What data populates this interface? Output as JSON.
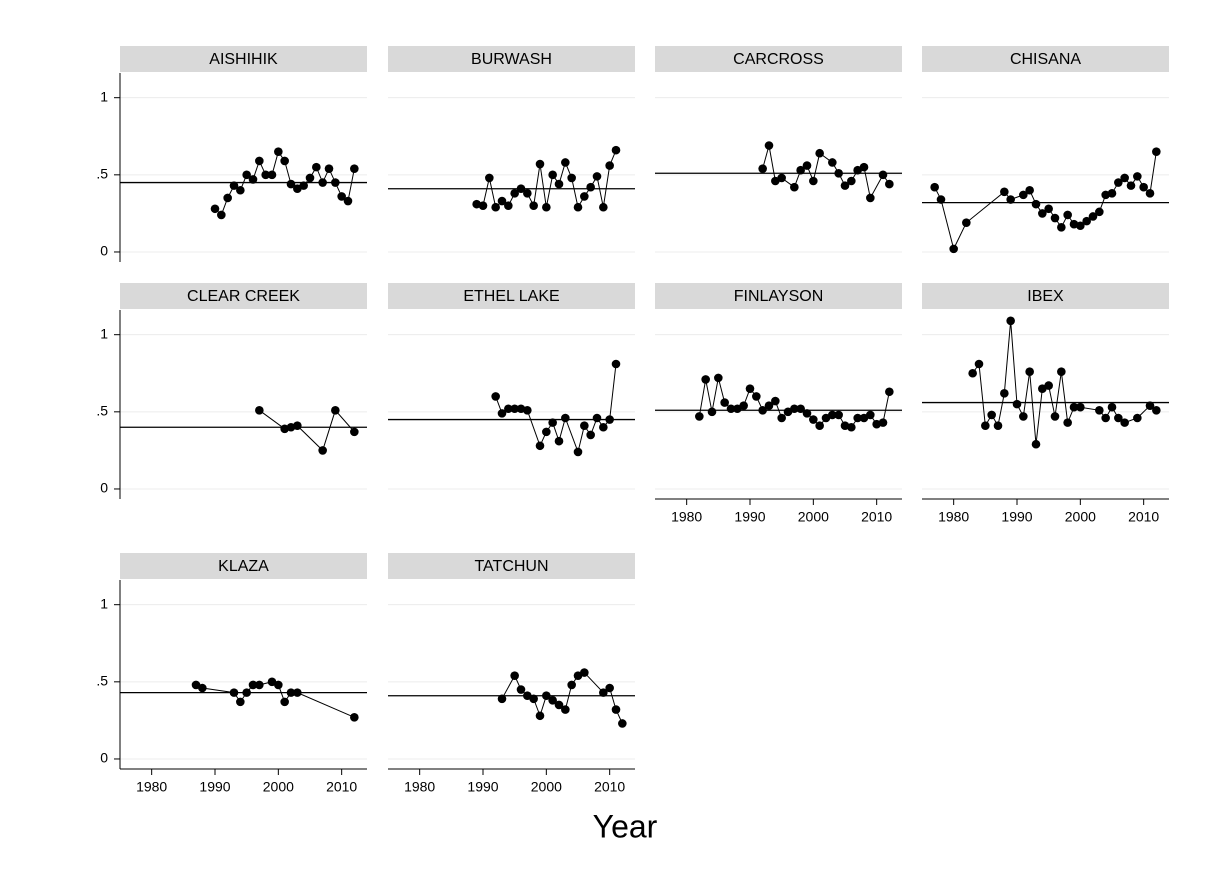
{
  "chart_data": [
    {
      "type": "line",
      "title": "AISHIHIK",
      "xlim": [
        1975,
        2014
      ],
      "ylim": [
        -0.065,
        1.16
      ],
      "yticks": [
        0,
        {
          "value": 0.5,
          "label": ".5"
        },
        1
      ],
      "reference_line": 0.45,
      "x": [
        1990,
        1991,
        1992,
        1993,
        1994,
        1995,
        1996,
        1997,
        1998,
        1999,
        2000,
        2001,
        2002,
        2003,
        2004,
        2005,
        2006,
        2007,
        2008,
        2009,
        2010,
        2011,
        2012
      ],
      "values": [
        0.28,
        0.24,
        0.35,
        0.43,
        0.4,
        0.5,
        0.47,
        0.59,
        0.5,
        0.5,
        0.65,
        0.59,
        0.44,
        0.41,
        0.43,
        0.48,
        0.55,
        0.45,
        0.54,
        0.45,
        0.36,
        0.33,
        0.54
      ]
    },
    {
      "type": "line",
      "title": "BURWASH",
      "xlim": [
        1975,
        2014
      ],
      "ylim": [
        -0.065,
        1.16
      ],
      "yticks": [
        0,
        {
          "value": 0.5,
          "label": ".5"
        },
        1
      ],
      "reference_line": 0.41,
      "x": [
        1989,
        1990,
        1991,
        1992,
        1993,
        1994,
        1995,
        1996,
        1997,
        1998,
        1999,
        2000,
        2001,
        2002,
        2003,
        2004,
        2005,
        2006,
        2007,
        2008,
        2009,
        2010,
        2011
      ],
      "values": [
        0.31,
        0.3,
        0.48,
        0.29,
        0.33,
        0.3,
        0.38,
        0.41,
        0.38,
        0.3,
        0.57,
        0.29,
        0.5,
        0.44,
        0.58,
        0.48,
        0.29,
        0.36,
        0.42,
        0.49,
        0.29,
        0.56,
        0.66
      ]
    },
    {
      "type": "line",
      "title": "CARCROSS",
      "xlim": [
        1975,
        2014
      ],
      "ylim": [
        -0.065,
        1.16
      ],
      "yticks": [
        0,
        {
          "value": 0.5,
          "label": ".5"
        },
        1
      ],
      "reference_line": 0.51,
      "x": [
        1992,
        1993,
        1994,
        1995,
        1997,
        1998,
        1999,
        2000,
        2001,
        2003,
        2004,
        2005,
        2006,
        2007,
        2008,
        2009,
        2011,
        2012
      ],
      "values": [
        0.54,
        0.69,
        0.46,
        0.48,
        0.42,
        0.53,
        0.56,
        0.46,
        0.64,
        0.58,
        0.51,
        0.43,
        0.46,
        0.53,
        0.55,
        0.35,
        0.5,
        0.44
      ]
    },
    {
      "type": "line",
      "title": "CHISANA",
      "xlim": [
        1975,
        2014
      ],
      "ylim": [
        -0.065,
        1.16
      ],
      "yticks": [
        0,
        {
          "value": 0.5,
          "label": ".5"
        },
        1
      ],
      "reference_line": 0.32,
      "x": [
        1977,
        1978,
        1980,
        1982,
        1988,
        1989,
        1991,
        1992,
        1993,
        1994,
        1995,
        1996,
        1997,
        1998,
        1999,
        2000,
        2001,
        2002,
        2003,
        2004,
        2005,
        2006,
        2007,
        2008,
        2009,
        2010,
        2011,
        2012
      ],
      "values": [
        0.42,
        0.34,
        0.02,
        0.19,
        0.39,
        0.34,
        0.37,
        0.4,
        0.31,
        0.25,
        0.28,
        0.22,
        0.16,
        0.24,
        0.18,
        0.17,
        0.2,
        0.23,
        0.26,
        0.37,
        0.38,
        0.45,
        0.48,
        0.43,
        0.49,
        0.42,
        0.38,
        0.65
      ]
    },
    {
      "type": "line",
      "title": "CLEAR CREEK",
      "xlim": [
        1975,
        2014
      ],
      "ylim": [
        -0.065,
        1.16
      ],
      "yticks": [
        0,
        {
          "value": 0.5,
          "label": ".5"
        },
        1
      ],
      "reference_line": 0.4,
      "x": [
        1997,
        2001,
        2002,
        2003,
        2007,
        2009,
        2012
      ],
      "values": [
        0.51,
        0.39,
        0.4,
        0.41,
        0.25,
        0.51,
        0.37
      ]
    },
    {
      "type": "line",
      "title": "ETHEL LAKE",
      "xlim": [
        1975,
        2014
      ],
      "ylim": [
        -0.065,
        1.16
      ],
      "yticks": [
        0,
        {
          "value": 0.5,
          "label": ".5"
        },
        1
      ],
      "reference_line": 0.45,
      "x": [
        1992,
        1993,
        1994,
        1995,
        1996,
        1997,
        1999,
        2000,
        2001,
        2002,
        2003,
        2005,
        2006,
        2007,
        2008,
        2009,
        2010,
        2011
      ],
      "values": [
        0.6,
        0.49,
        0.52,
        0.52,
        0.52,
        0.51,
        0.28,
        0.37,
        0.43,
        0.31,
        0.46,
        0.24,
        0.41,
        0.35,
        0.46,
        0.4,
        0.45,
        0.81
      ]
    },
    {
      "type": "line",
      "title": "FINLAYSON",
      "xlim": [
        1975,
        2014
      ],
      "ylim": [
        -0.065,
        1.16
      ],
      "yticks": [
        0,
        {
          "value": 0.5,
          "label": ".5"
        },
        1
      ],
      "xticks": [
        1980,
        1990,
        2000,
        2010
      ],
      "reference_line": 0.51,
      "x": [
        1982,
        1983,
        1984,
        1985,
        1986,
        1987,
        1988,
        1989,
        1990,
        1991,
        1992,
        1993,
        1994,
        1995,
        1996,
        1997,
        1998,
        1999,
        2000,
        2001,
        2002,
        2003,
        2004,
        2005,
        2006,
        2007,
        2008,
        2009,
        2010,
        2011,
        2012
      ],
      "values": [
        0.47,
        0.71,
        0.5,
        0.72,
        0.56,
        0.52,
        0.52,
        0.54,
        0.65,
        0.6,
        0.51,
        0.54,
        0.57,
        0.46,
        0.5,
        0.52,
        0.52,
        0.49,
        0.45,
        0.41,
        0.46,
        0.48,
        0.48,
        0.41,
        0.4,
        0.46,
        0.46,
        0.48,
        0.42,
        0.43,
        0.63
      ]
    },
    {
      "type": "line",
      "title": "IBEX",
      "xlim": [
        1975,
        2014
      ],
      "ylim": [
        -0.065,
        1.16
      ],
      "yticks": [
        0,
        {
          "value": 0.5,
          "label": ".5"
        },
        1
      ],
      "xticks": [
        1980,
        1990,
        2000,
        2010
      ],
      "reference_line": 0.56,
      "x": [
        1983,
        1984,
        1985,
        1986,
        1987,
        1988,
        1989,
        1990,
        1991,
        1992,
        1993,
        1994,
        1995,
        1996,
        1997,
        1998,
        1999,
        2000,
        2003,
        2004,
        2005,
        2006,
        2007,
        2009,
        2011,
        2012
      ],
      "values": [
        0.75,
        0.81,
        0.41,
        0.48,
        0.41,
        0.62,
        1.09,
        0.55,
        0.47,
        0.76,
        0.29,
        0.65,
        0.67,
        0.47,
        0.76,
        0.43,
        0.53,
        0.53,
        0.51,
        0.46,
        0.53,
        0.46,
        0.43,
        0.46,
        0.54,
        0.51
      ]
    },
    {
      "type": "line",
      "title": "KLAZA",
      "xlim": [
        1975,
        2014
      ],
      "ylim": [
        -0.065,
        1.16
      ],
      "yticks": [
        0,
        {
          "value": 0.5,
          "label": ".5"
        },
        1
      ],
      "xticks": [
        1980,
        1990,
        2000,
        2010
      ],
      "reference_line": 0.43,
      "x": [
        1987,
        1988,
        1993,
        1994,
        1995,
        1996,
        1997,
        1999,
        2000,
        2001,
        2002,
        2003,
        2012
      ],
      "values": [
        0.48,
        0.46,
        0.43,
        0.37,
        0.43,
        0.48,
        0.48,
        0.5,
        0.48,
        0.37,
        0.43,
        0.43,
        0.27
      ]
    },
    {
      "type": "line",
      "title": "TATCHUN",
      "xlim": [
        1975,
        2014
      ],
      "ylim": [
        -0.065,
        1.16
      ],
      "yticks": [
        0,
        {
          "value": 0.5,
          "label": ".5"
        },
        1
      ],
      "xticks": [
        1980,
        1990,
        2000,
        2010
      ],
      "reference_line": 0.41,
      "x": [
        1993,
        1995,
        1996,
        1997,
        1998,
        1999,
        2000,
        2001,
        2002,
        2003,
        2004,
        2005,
        2006,
        2009,
        2010,
        2011,
        2012
      ],
      "values": [
        0.39,
        0.54,
        0.45,
        0.41,
        0.39,
        0.28,
        0.41,
        0.38,
        0.35,
        0.32,
        0.48,
        0.54,
        0.56,
        0.43,
        0.46,
        0.32,
        0.23
      ]
    }
  ],
  "xlabel": "Year"
}
